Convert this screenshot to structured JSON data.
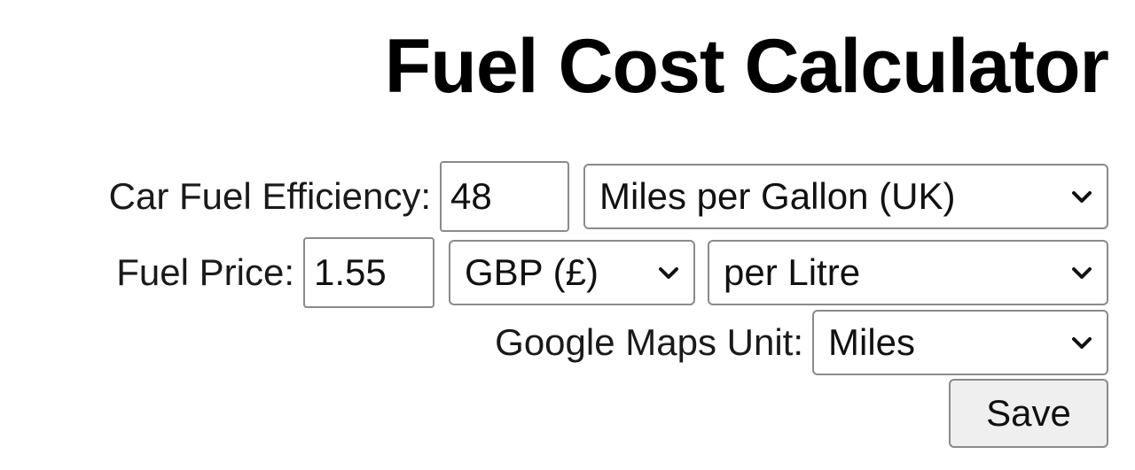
{
  "page": {
    "title": "Fuel Cost Calculator"
  },
  "efficiency": {
    "label": "Car Fuel Efficiency:",
    "value": "48",
    "unit_selected": "Miles per Gallon (UK)"
  },
  "price": {
    "label": "Fuel Price:",
    "value": "1.55",
    "currency_selected": "GBP (£)",
    "per_selected": "per Litre"
  },
  "maps": {
    "label": "Google Maps Unit:",
    "unit_selected": "Miles"
  },
  "actions": {
    "save_label": "Save"
  },
  "icons": {
    "dropdown": "chevron-down-icon"
  }
}
